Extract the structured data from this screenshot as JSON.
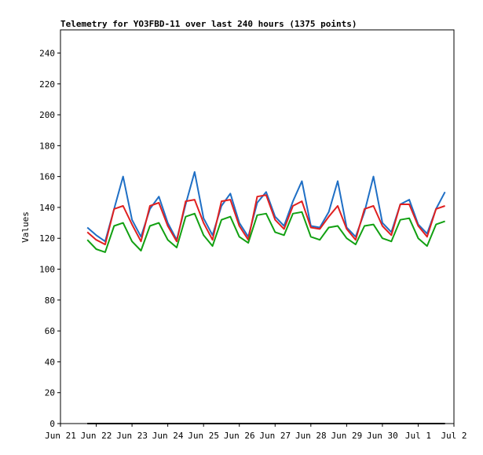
{
  "chart_data": {
    "type": "line",
    "title": "Telemetry for YO3FBD-11 over last 240 hours (1375 points)",
    "xlabel": "",
    "ylabel": "Values",
    "ylim": [
      0,
      255
    ],
    "xlim": [
      "Jun 21 00:00",
      "Jul 2 00:00"
    ],
    "yticks": [
      0,
      20,
      40,
      60,
      80,
      100,
      120,
      140,
      160,
      180,
      200,
      220,
      240
    ],
    "xticks": [
      "Jun 21",
      "Jun 22",
      "Jun 23",
      "Jun 24",
      "Jun 25",
      "Jun 26",
      "Jun 27",
      "Jun 28",
      "Jun 29",
      "Jun 30",
      "Jul 1",
      "Jul 2"
    ],
    "grid": false,
    "legend": "none",
    "colors": [
      "#1f6fc5",
      "#e02020",
      "#12a012",
      "#000000"
    ],
    "series": [
      {
        "x": [
          "Jun 21 18:00",
          "Jun 22 00:00",
          "Jun 22 06:00",
          "Jun 22 12:00",
          "Jun 22 18:00",
          "Jun 23 00:00",
          "Jun 23 06:00",
          "Jun 23 12:00",
          "Jun 23 18:00",
          "Jun 24 00:00",
          "Jun 24 06:00",
          "Jun 24 12:00",
          "Jun 24 18:00",
          "Jun 25 00:00",
          "Jun 25 06:00",
          "Jun 25 12:00",
          "Jun 25 18:00",
          "Jun 26 00:00",
          "Jun 26 06:00",
          "Jun 26 12:00",
          "Jun 26 18:00",
          "Jun 27 00:00",
          "Jun 27 06:00",
          "Jun 27 12:00",
          "Jun 27 18:00",
          "Jun 28 00:00",
          "Jun 28 06:00",
          "Jun 28 12:00",
          "Jun 28 18:00",
          "Jun 29 00:00",
          "Jun 29 06:00",
          "Jun 29 12:00",
          "Jun 29 18:00",
          "Jun 30 00:00",
          "Jun 30 06:00",
          "Jun 30 12:00",
          "Jun 30 18:00",
          "Jul 1 00:00",
          "Jul 1 06:00",
          "Jul 1 12:00",
          "Jul 1 18:00"
        ],
        "values": [
          127,
          122,
          118,
          139,
          160,
          132,
          121,
          139,
          147,
          130,
          119,
          142,
          163,
          133,
          122,
          141,
          149,
          130,
          121,
          143,
          150,
          134,
          128,
          144,
          157,
          128,
          127,
          137,
          157,
          127,
          121,
          137,
          160,
          130,
          124,
          142,
          145,
          129,
          123,
          139,
          150
        ]
      },
      {
        "x": [
          "Jun 21 18:00",
          "Jun 22 00:00",
          "Jun 22 06:00",
          "Jun 22 12:00",
          "Jun 22 18:00",
          "Jun 23 00:00",
          "Jun 23 06:00",
          "Jun 23 12:00",
          "Jun 23 18:00",
          "Jun 24 00:00",
          "Jun 24 06:00",
          "Jun 24 12:00",
          "Jun 24 18:00",
          "Jun 25 00:00",
          "Jun 25 06:00",
          "Jun 25 12:00",
          "Jun 25 18:00",
          "Jun 26 00:00",
          "Jun 26 06:00",
          "Jun 26 12:00",
          "Jun 26 18:00",
          "Jun 27 00:00",
          "Jun 27 06:00",
          "Jun 27 12:00",
          "Jun 27 18:00",
          "Jun 28 00:00",
          "Jun 28 06:00",
          "Jun 28 12:00",
          "Jun 28 18:00",
          "Jun 29 00:00",
          "Jun 29 06:00",
          "Jun 29 12:00",
          "Jun 29 18:00",
          "Jun 30 00:00",
          "Jun 30 06:00",
          "Jun 30 12:00",
          "Jun 30 18:00",
          "Jul 1 00:00",
          "Jul 1 06:00",
          "Jul 1 12:00",
          "Jul 1 18:00"
        ],
        "values": [
          124,
          119,
          116,
          139,
          141,
          129,
          118,
          141,
          143,
          128,
          118,
          144,
          145,
          130,
          119,
          144,
          145,
          128,
          119,
          147,
          148,
          132,
          126,
          141,
          144,
          127,
          126,
          134,
          141,
          126,
          119,
          139,
          141,
          128,
          122,
          142,
          142,
          128,
          121,
          139,
          141
        ]
      },
      {
        "x": [
          "Jun 21 18:00",
          "Jun 22 00:00",
          "Jun 22 06:00",
          "Jun 22 12:00",
          "Jun 22 18:00",
          "Jun 23 00:00",
          "Jun 23 06:00",
          "Jun 23 12:00",
          "Jun 23 18:00",
          "Jun 24 00:00",
          "Jun 24 06:00",
          "Jun 24 12:00",
          "Jun 24 18:00",
          "Jun 25 00:00",
          "Jun 25 06:00",
          "Jun 25 12:00",
          "Jun 25 18:00",
          "Jun 26 00:00",
          "Jun 26 06:00",
          "Jun 26 12:00",
          "Jun 26 18:00",
          "Jun 27 00:00",
          "Jun 27 06:00",
          "Jun 27 12:00",
          "Jun 27 18:00",
          "Jun 28 00:00",
          "Jun 28 06:00",
          "Jun 28 12:00",
          "Jun 28 18:00",
          "Jun 29 00:00",
          "Jun 29 06:00",
          "Jun 29 12:00",
          "Jun 29 18:00",
          "Jun 30 00:00",
          "Jun 30 06:00",
          "Jun 30 12:00",
          "Jun 30 18:00",
          "Jul 1 00:00",
          "Jul 1 06:00",
          "Jul 1 12:00",
          "Jul 1 18:00"
        ],
        "values": [
          119,
          113,
          111,
          128,
          130,
          118,
          112,
          128,
          130,
          119,
          114,
          134,
          136,
          122,
          115,
          132,
          134,
          121,
          117,
          135,
          136,
          124,
          122,
          136,
          137,
          121,
          119,
          127,
          128,
          120,
          116,
          128,
          129,
          120,
          118,
          132,
          133,
          120,
          115,
          129,
          131
        ]
      },
      {
        "x": [
          "Jun 21 18:00",
          "Jul 1 18:00"
        ],
        "values": [
          0,
          0
        ]
      }
    ]
  }
}
